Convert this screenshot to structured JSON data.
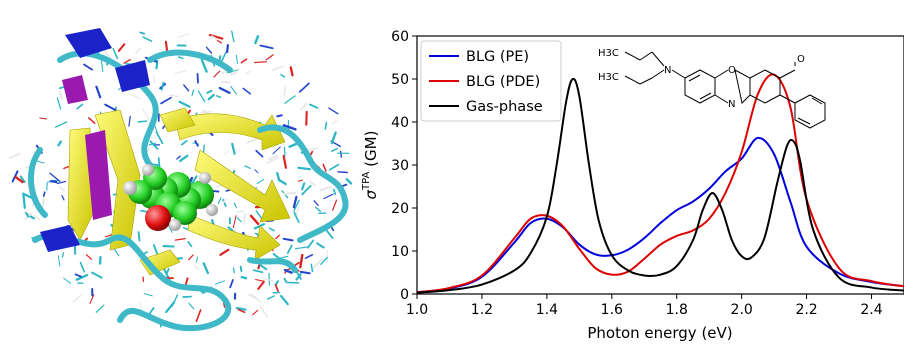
{
  "figure": {
    "left_panel": {
      "description_icon": "protein-ribbon-with-ligand-render",
      "colors": {
        "ribbon": "#f2ef12",
        "coil": "#3fb8c8",
        "helix_blue": "#1a22c8",
        "helix_purple": "#9a1ab0",
        "ligand": "#22cc22",
        "oxygen": "#e01010"
      }
    },
    "molecule": {
      "labels": [
        "H3C",
        "H3C",
        "N",
        "O",
        "N",
        "O"
      ]
    }
  },
  "chart_data": {
    "type": "line",
    "xlabel": "Photon energy (eV)",
    "ylabel_main": "σ",
    "ylabel_sup": "TPA",
    "ylabel_unit": "(GM)",
    "xlim": [
      1.0,
      2.5
    ],
    "ylim": [
      0,
      60
    ],
    "xticks": [
      "1.0",
      "1.2",
      "1.4",
      "1.6",
      "1.8",
      "2.0",
      "2.2",
      "2.4"
    ],
    "yticks": [
      "0",
      "10",
      "20",
      "30",
      "40",
      "50",
      "60"
    ],
    "legend_position": "top-left",
    "series": [
      {
        "name": "BLG (PE)",
        "color": "#0000dd",
        "x": [
          1.0,
          1.1,
          1.2,
          1.3,
          1.35,
          1.4,
          1.45,
          1.5,
          1.55,
          1.6,
          1.65,
          1.7,
          1.75,
          1.8,
          1.85,
          1.9,
          1.95,
          2.0,
          2.05,
          2.1,
          2.15,
          2.2,
          2.3,
          2.4,
          2.5
        ],
        "y": [
          0.4,
          1.3,
          4.0,
          12.0,
          16.5,
          17.5,
          15.5,
          11.5,
          9.2,
          9.0,
          10.3,
          13.0,
          16.5,
          19.5,
          21.5,
          24.5,
          28.5,
          31.5,
          36.3,
          32.5,
          21.5,
          11.0,
          4.8,
          2.8,
          1.8
        ]
      },
      {
        "name": "BLG (PDE)",
        "color": "#dd0000",
        "x": [
          1.0,
          1.1,
          1.2,
          1.3,
          1.35,
          1.4,
          1.45,
          1.5,
          1.55,
          1.6,
          1.65,
          1.7,
          1.75,
          1.8,
          1.85,
          1.9,
          1.95,
          2.0,
          2.05,
          2.1,
          2.15,
          2.2,
          2.3,
          2.4,
          2.5
        ],
        "y": [
          0.4,
          1.4,
          4.3,
          13.0,
          17.5,
          18.2,
          15.7,
          10.5,
          6.0,
          4.5,
          5.2,
          8.2,
          11.5,
          13.5,
          14.8,
          17.5,
          23.5,
          33.0,
          46.5,
          51.0,
          43.5,
          22.0,
          6.0,
          3.0,
          1.8
        ]
      },
      {
        "name": "Gas-phase",
        "color": "#000000",
        "x": [
          1.0,
          1.1,
          1.2,
          1.3,
          1.35,
          1.4,
          1.43,
          1.46,
          1.48,
          1.5,
          1.53,
          1.56,
          1.6,
          1.65,
          1.7,
          1.75,
          1.8,
          1.85,
          1.88,
          1.91,
          1.94,
          1.97,
          2.0,
          2.03,
          2.07,
          2.11,
          2.14,
          2.16,
          2.18,
          2.22,
          2.3,
          2.4,
          2.5
        ],
        "y": [
          0.3,
          0.9,
          2.2,
          5.5,
          9.5,
          18.0,
          30.0,
          45.0,
          50.0,
          46.0,
          30.0,
          17.0,
          9.0,
          5.5,
          4.3,
          4.5,
          6.5,
          12.5,
          19.5,
          23.5,
          19.5,
          12.5,
          8.8,
          8.5,
          13.0,
          26.0,
          34.5,
          35.5,
          31.0,
          15.0,
          3.8,
          1.5,
          0.8
        ]
      }
    ]
  }
}
